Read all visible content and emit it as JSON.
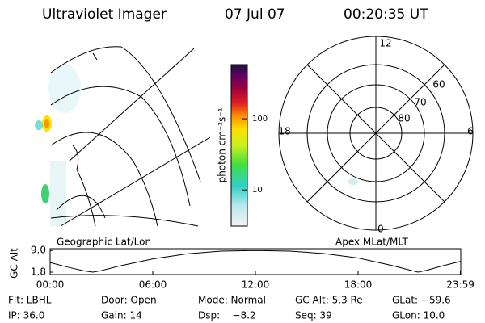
{
  "header": {
    "title": "Ultraviolet Imager",
    "date": "07 Jul 07",
    "time": "00:20:35 UT"
  },
  "colorbar": {
    "label": "photon cm⁻²s⁻¹",
    "log": true,
    "ylim": [
      3.1,
      578
    ],
    "yticks": [
      10,
      100
    ]
  },
  "polar": {
    "labels": [
      "12",
      "18",
      "6",
      "0",
      "60",
      "70",
      "80"
    ]
  },
  "panel_labels": {
    "left": "Geographic Lat/Lon",
    "right": "Apex MLat/MLT"
  },
  "chart_data": {
    "type": "line",
    "ylabel": "GC Alt",
    "x": [
      0,
      1,
      2,
      2.5,
      3,
      4,
      6,
      8,
      10,
      12,
      14,
      16,
      18,
      20,
      21,
      21.5,
      22,
      23,
      24
    ],
    "values": [
      5.0,
      3.5,
      2.2,
      1.8,
      2.3,
      3.8,
      6.2,
      7.9,
      8.8,
      9.0,
      8.8,
      8.0,
      6.5,
      4.0,
      2.5,
      1.8,
      2.4,
      4.0,
      5.4
    ],
    "color": "#000000",
    "xlim": [
      0,
      24
    ],
    "ylim": [
      1.0,
      9.6
    ],
    "xticks": [
      {
        "value": 0,
        "label": "00:00"
      },
      {
        "value": 6,
        "label": "06:00"
      },
      {
        "value": 12,
        "label": "12:00"
      },
      {
        "value": 18,
        "label": "18:00"
      },
      {
        "value": 23.98,
        "label": "23:59"
      }
    ],
    "yticks": [
      {
        "value": 1.8,
        "label": "1.8"
      },
      {
        "value": 9.0,
        "label": "9.0"
      }
    ]
  },
  "info": [
    [
      "Flt: LBHL",
      "Door: Open",
      "Mode: Normal",
      "GC Alt: 5.3 Re",
      "GLat: −59.6"
    ],
    [
      "IP: 36.0",
      "Gain: 14",
      "Dsp:    −8.2",
      "Seq: 39",
      "GLon: 10.0"
    ]
  ]
}
